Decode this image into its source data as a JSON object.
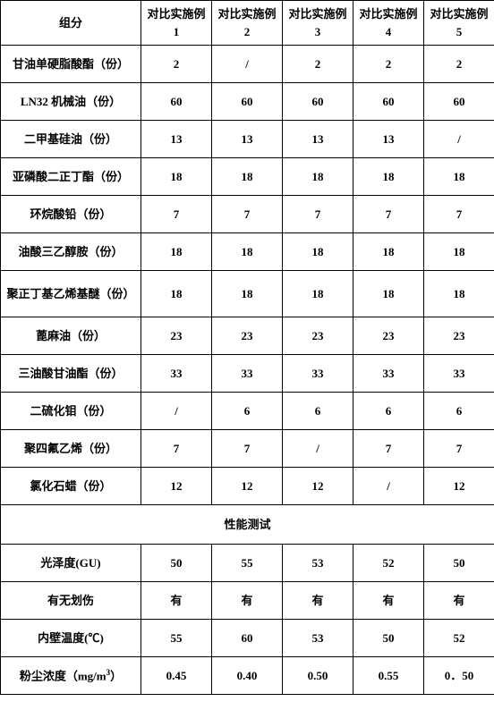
{
  "table": {
    "header_label": "组分",
    "header_prefix": "对比实施例",
    "header_nums": [
      "1",
      "2",
      "3",
      "4",
      "5"
    ],
    "rows": [
      {
        "label": "甘油单硬脂酸酯（份）",
        "cells": [
          "2",
          "/",
          "2",
          "2",
          "2"
        ]
      },
      {
        "label": "LN32 机械油（份）",
        "cells": [
          "60",
          "60",
          "60",
          "60",
          "60"
        ]
      },
      {
        "label": "二甲基硅油（份）",
        "cells": [
          "13",
          "13",
          "13",
          "13",
          "/"
        ]
      },
      {
        "label": "亚磷酸二正丁酯（份）",
        "cells": [
          "18",
          "18",
          "18",
          "18",
          "18"
        ]
      },
      {
        "label": "环烷酸铅（份）",
        "cells": [
          "7",
          "7",
          "7",
          "7",
          "7"
        ]
      },
      {
        "label": "油酸三乙醇胺（份）",
        "cells": [
          "18",
          "18",
          "18",
          "18",
          "18"
        ]
      },
      {
        "label": "聚正丁基乙烯基醚（份）",
        "cells": [
          "18",
          "18",
          "18",
          "18",
          "18"
        ]
      },
      {
        "label": "蓖麻油（份）",
        "cells": [
          "23",
          "23",
          "23",
          "23",
          "23"
        ]
      },
      {
        "label": "三油酸甘油酯（份）",
        "cells": [
          "33",
          "33",
          "33",
          "33",
          "33"
        ]
      },
      {
        "label": "二硫化钼（份）",
        "cells": [
          "/",
          "6",
          "6",
          "6",
          "6"
        ]
      },
      {
        "label": "聚四氟乙烯（份）",
        "cells": [
          "7",
          "7",
          "/",
          "7",
          "7"
        ]
      },
      {
        "label": "氯化石蜡（份）",
        "cells": [
          "12",
          "12",
          "12",
          "/",
          "12"
        ]
      }
    ],
    "perf_header": "性能测试",
    "perf_rows": [
      {
        "label": "光泽度(GU)",
        "cells": [
          "50",
          "55",
          "53",
          "52",
          "50"
        ]
      },
      {
        "label": "有无划伤",
        "cells": [
          "有",
          "有",
          "有",
          "有",
          "有"
        ]
      },
      {
        "label": "内壁温度(℃)",
        "cells": [
          "55",
          "60",
          "53",
          "50",
          "52"
        ]
      }
    ],
    "dust_label_pre": "粉尘浓度（mg/m",
    "dust_label_sup": "3",
    "dust_label_post": "）",
    "dust_cells": [
      "0.45",
      "0.40",
      "0.50",
      "0.55",
      "0．50"
    ]
  },
  "style": {
    "border_color": "#000000",
    "background": "#ffffff",
    "font_size": 13,
    "font_weight": "bold",
    "col_label_width": 157,
    "col_data_width": 79
  }
}
